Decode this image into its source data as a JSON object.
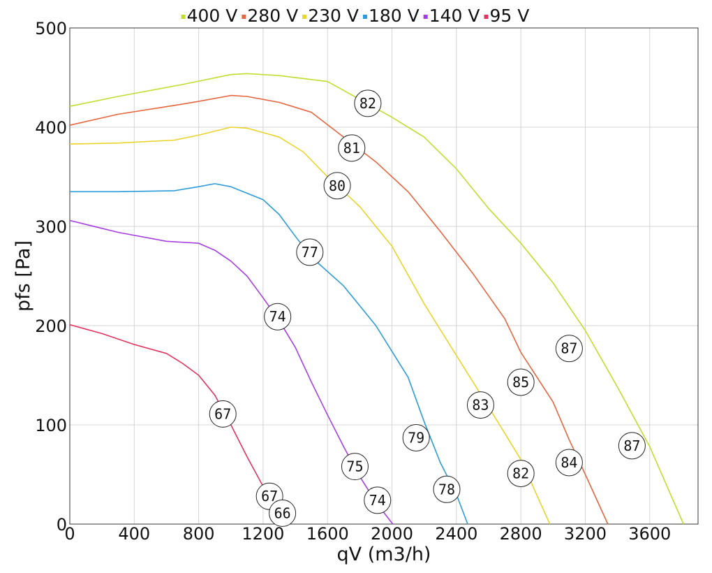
{
  "chart_data": {
    "type": "line",
    "xlabel": "qV (m3/h)",
    "ylabel": "pfs [Pa]",
    "xlim": [
      0,
      3900
    ],
    "ylim": [
      0,
      500
    ],
    "xticks": [
      0,
      400,
      800,
      1200,
      1600,
      2000,
      2400,
      2800,
      3200,
      3600
    ],
    "yticks": [
      0,
      100,
      200,
      300,
      400,
      500
    ],
    "grid": true,
    "legend_position": "top",
    "series": [
      {
        "name": "400 V",
        "color": "#c2dc2f",
        "points": [
          [
            0,
            421
          ],
          [
            300,
            431
          ],
          [
            700,
            443
          ],
          [
            1000,
            453
          ],
          [
            1100,
            454
          ],
          [
            1300,
            452
          ],
          [
            1600,
            446
          ],
          [
            1800,
            428
          ],
          [
            2000,
            410
          ],
          [
            2200,
            390
          ],
          [
            2400,
            358
          ],
          [
            2600,
            318
          ],
          [
            2800,
            283
          ],
          [
            3000,
            243
          ],
          [
            3200,
            195
          ],
          [
            3400,
            138
          ],
          [
            3600,
            78
          ],
          [
            3810,
            0
          ]
        ]
      },
      {
        "name": "280 V",
        "color": "#e5653f",
        "points": [
          [
            0,
            402
          ],
          [
            300,
            413
          ],
          [
            650,
            422
          ],
          [
            800,
            426
          ],
          [
            1000,
            432
          ],
          [
            1100,
            431
          ],
          [
            1300,
            425
          ],
          [
            1500,
            415
          ],
          [
            1700,
            390
          ],
          [
            1900,
            365
          ],
          [
            2100,
            335
          ],
          [
            2300,
            295
          ],
          [
            2500,
            253
          ],
          [
            2700,
            207
          ],
          [
            2800,
            173
          ],
          [
            3000,
            123
          ],
          [
            3100,
            85
          ],
          [
            3200,
            50
          ],
          [
            3340,
            0
          ]
        ]
      },
      {
        "name": "230 V",
        "color": "#e8d42a",
        "points": [
          [
            0,
            383
          ],
          [
            300,
            384
          ],
          [
            650,
            387
          ],
          [
            800,
            392
          ],
          [
            1000,
            400
          ],
          [
            1100,
            399
          ],
          [
            1300,
            390
          ],
          [
            1450,
            375
          ],
          [
            1600,
            350
          ],
          [
            1800,
            320
          ],
          [
            2000,
            280
          ],
          [
            2200,
            222
          ],
          [
            2400,
            170
          ],
          [
            2600,
            118
          ],
          [
            2800,
            65
          ],
          [
            2980,
            0
          ]
        ]
      },
      {
        "name": "180 V",
        "color": "#2b9bd9",
        "points": [
          [
            0,
            335
          ],
          [
            300,
            335
          ],
          [
            650,
            336
          ],
          [
            800,
            340
          ],
          [
            900,
            343
          ],
          [
            1000,
            340
          ],
          [
            1200,
            327
          ],
          [
            1300,
            312
          ],
          [
            1400,
            290
          ],
          [
            1500,
            269
          ],
          [
            1700,
            240
          ],
          [
            1900,
            200
          ],
          [
            2100,
            148
          ],
          [
            2200,
            103
          ],
          [
            2300,
            62
          ],
          [
            2400,
            30
          ],
          [
            2470,
            0
          ]
        ]
      },
      {
        "name": "140 V",
        "color": "#a63ee2",
        "points": [
          [
            0,
            306
          ],
          [
            300,
            294
          ],
          [
            600,
            285
          ],
          [
            800,
            283
          ],
          [
            900,
            276
          ],
          [
            1000,
            265
          ],
          [
            1100,
            250
          ],
          [
            1200,
            228
          ],
          [
            1300,
            205
          ],
          [
            1400,
            178
          ],
          [
            1500,
            143
          ],
          [
            1600,
            110
          ],
          [
            1700,
            78
          ],
          [
            1800,
            48
          ],
          [
            1900,
            22
          ],
          [
            2005,
            0
          ]
        ]
      },
      {
        "name": "95 V",
        "color": "#e0345f",
        "points": [
          [
            0,
            201
          ],
          [
            200,
            192
          ],
          [
            400,
            181
          ],
          [
            600,
            172
          ],
          [
            700,
            162
          ],
          [
            800,
            150
          ],
          [
            900,
            130
          ],
          [
            1000,
            100
          ],
          [
            1100,
            68
          ],
          [
            1200,
            38
          ],
          [
            1300,
            12
          ],
          [
            1330,
            0
          ]
        ]
      }
    ],
    "annotations": [
      {
        "x": 1850,
        "y": 424,
        "label": "82"
      },
      {
        "x": 1750,
        "y": 379,
        "label": "81"
      },
      {
        "x": 1660,
        "y": 341,
        "label": "80"
      },
      {
        "x": 1490,
        "y": 274,
        "label": "77"
      },
      {
        "x": 1290,
        "y": 209,
        "label": "74"
      },
      {
        "x": 950,
        "y": 111,
        "label": "67"
      },
      {
        "x": 3100,
        "y": 177,
        "label": "87"
      },
      {
        "x": 3490,
        "y": 79,
        "label": "87"
      },
      {
        "x": 2800,
        "y": 143,
        "label": "85"
      },
      {
        "x": 3100,
        "y": 62,
        "label": "84"
      },
      {
        "x": 2550,
        "y": 120,
        "label": "83"
      },
      {
        "x": 2800,
        "y": 51,
        "label": "82"
      },
      {
        "x": 2150,
        "y": 87,
        "label": "79"
      },
      {
        "x": 2340,
        "y": 35,
        "label": "78"
      },
      {
        "x": 1770,
        "y": 58,
        "label": "75"
      },
      {
        "x": 1910,
        "y": 24,
        "label": "74"
      },
      {
        "x": 1240,
        "y": 28,
        "label": "67"
      },
      {
        "x": 1320,
        "y": 11,
        "label": "66"
      }
    ]
  }
}
